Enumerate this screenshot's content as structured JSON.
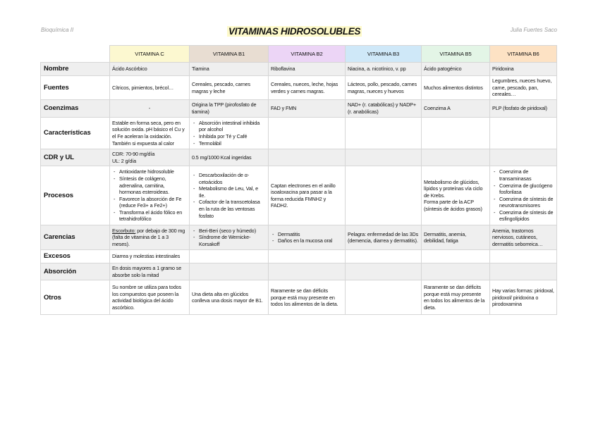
{
  "header": {
    "left": "Bioquímica II",
    "title": "VITAMINAS HIDROSOLUBLES",
    "right": "Julia Fuertes Saco"
  },
  "colors": {
    "title_highlight": "#fdf9c9",
    "vitamin_c": "#fcf8d0",
    "vitamin_b1": "#e8ddd2",
    "vitamin_b2": "#ecd5f6",
    "vitamin_b3": "#cfe8f8",
    "vitamin_b5": "#e3f5e6",
    "vitamin_b6": "#fde2c4",
    "row_alt": "#efefef"
  },
  "columns": [
    "VITAMINA C",
    "VITAMINA B1",
    "VITAMINA B2",
    "VITAMINA B3",
    "VITAMINA B5",
    "VITAMINA B6"
  ],
  "rows": [
    {
      "label": "Nombre",
      "cells": [
        {
          "text": "Ácido Ascórbico"
        },
        {
          "text": "Tiamina"
        },
        {
          "text": "Riboflavina"
        },
        {
          "text": "Niacina, a. nicotínico, v. pp"
        },
        {
          "text": "Ácido patogénico"
        },
        {
          "text": "Piridoxina"
        }
      ]
    },
    {
      "label": "Fuentes",
      "cells": [
        {
          "text": "Cítricos, pimientos, brécol…"
        },
        {
          "text": "Cereales, pescado, carnes magras y leche"
        },
        {
          "text": "Cereales, nueces, leche, hojas verdes y carnes magras."
        },
        {
          "text": "Lácteos, pollo, pescado, carnes magras, nueces y huevos"
        },
        {
          "text": "Muchos alimentos distintos"
        },
        {
          "text": "Legumbres, nueces huevo, carne, pescado, pan, cereales…"
        }
      ]
    },
    {
      "label": "Coenzimas",
      "cells": [
        {
          "text": "-"
        },
        {
          "text": "Origina la TPP (pirofosfato de tiamina)"
        },
        {
          "text": "FAD y FMN"
        },
        {
          "text": "NAD+ (r. catabólicas) y NADP+ (r. anabólicas)"
        },
        {
          "text": "Coenzima A"
        },
        {
          "text": "PLP (fosfato de piridoxal)"
        }
      ]
    },
    {
      "label": "Características",
      "cells": [
        {
          "text": "Estable en forma seca, pero en solución oxida. pH básico el Cu y el Fe aceleran la oxidación. También si expuesta al calor"
        },
        {
          "list": [
            "Absorción intestinal inhibida por alcohol",
            "Inhibida por Té y Café",
            "Termolábil"
          ]
        },
        {},
        {},
        {},
        {}
      ]
    },
    {
      "label": "CDR y UL",
      "cells": [
        {
          "lines": [
            "CDR: 70-90 mg/día",
            "UL: 2 g/día"
          ]
        },
        {
          "text": "0.5 mg/1000 Kcal ingeridas"
        },
        {},
        {},
        {},
        {}
      ]
    },
    {
      "label": "Procesos",
      "cells": [
        {
          "list": [
            "Antioxidante hidrosoluble",
            "Síntesis de colágeno, adrenalina, carnitina, hormonas esteroideas.",
            "Favorece la absorción de Fe (reduce Fe3+ a Fe2+)",
            "Transforma el ácido fólico en tetrahidrofólico"
          ]
        },
        {
          "list": [
            "Descarboxilación de α-cetoácidos",
            "Metabolismo de Leu, Val, e Ile.",
            "Cofactor de la transcetolasa en la ruta de las ventosas fosfato"
          ]
        },
        {
          "text": "Captan electrones en el anillo isoaloxacina para pasar a la forma reducida FMNH2 y FADH2."
        },
        {},
        {
          "lines": [
            "Metabolismo de glúcidos, lípidos y proteínas vía ciclo de Krebs.",
            "Forma parte de la ACP (síntesis de ácidos grasos)"
          ]
        },
        {
          "list": [
            "Coenzima de transaminasas",
            "Coenzima de glucógeno fosforilasa",
            "Coenzima de síntesis de neurotransmisores",
            "Coenzima de síntesis de esfingolípidos"
          ]
        }
      ]
    },
    {
      "label": "Carencias",
      "cells": [
        {
          "label": "Escorbuto:",
          "text": "por debajo de 300 mg (falta de vitamina de 1 a 3 meses)."
        },
        {
          "list": [
            "Beri-Beri (seco y húmedo)",
            "Síndrome de Wernicke-Korsakoff"
          ]
        },
        {
          "list": [
            "Dermatitis",
            "Daños en la mucosa oral"
          ]
        },
        {
          "text": "Pelagra: enfermedad de las 3Ds (demencia, diarrea y dermatitis)."
        },
        {
          "text": "Dermatitis, anemia, debilidad, fatiga"
        },
        {
          "text": "Anemia, trastornos nerviosos, cutáneos, dermatitis seborreica…"
        }
      ]
    },
    {
      "label": "Excesos",
      "cells": [
        {
          "text": "Diarrea y molestias intestinales"
        },
        {},
        {},
        {},
        {},
        {}
      ]
    },
    {
      "label": "Absorción",
      "cells": [
        {
          "text": "En dosis mayores a 1 gramo se absorbe solo la mitad"
        },
        {},
        {},
        {},
        {},
        {}
      ]
    },
    {
      "label": "Otros",
      "cells": [
        {
          "text": "Su nombre se utiliza para todos los compuestos que poseen la actividad biológica del ácido ascórbico."
        },
        {
          "text": "Una dieta alta en glúcidos conlleva una dosis mayor de B1."
        },
        {
          "text": "Raramente se dan déficits porque está muy presente en todos los alimentos de la dieta."
        },
        {},
        {
          "text": "Raramente se dan déficits porque está muy presente en todos los alimentos de la dieta."
        },
        {
          "text": "Hay varias formas: piridoxal, piridoxol/ piridoxina o pirodoxamina"
        }
      ]
    }
  ]
}
